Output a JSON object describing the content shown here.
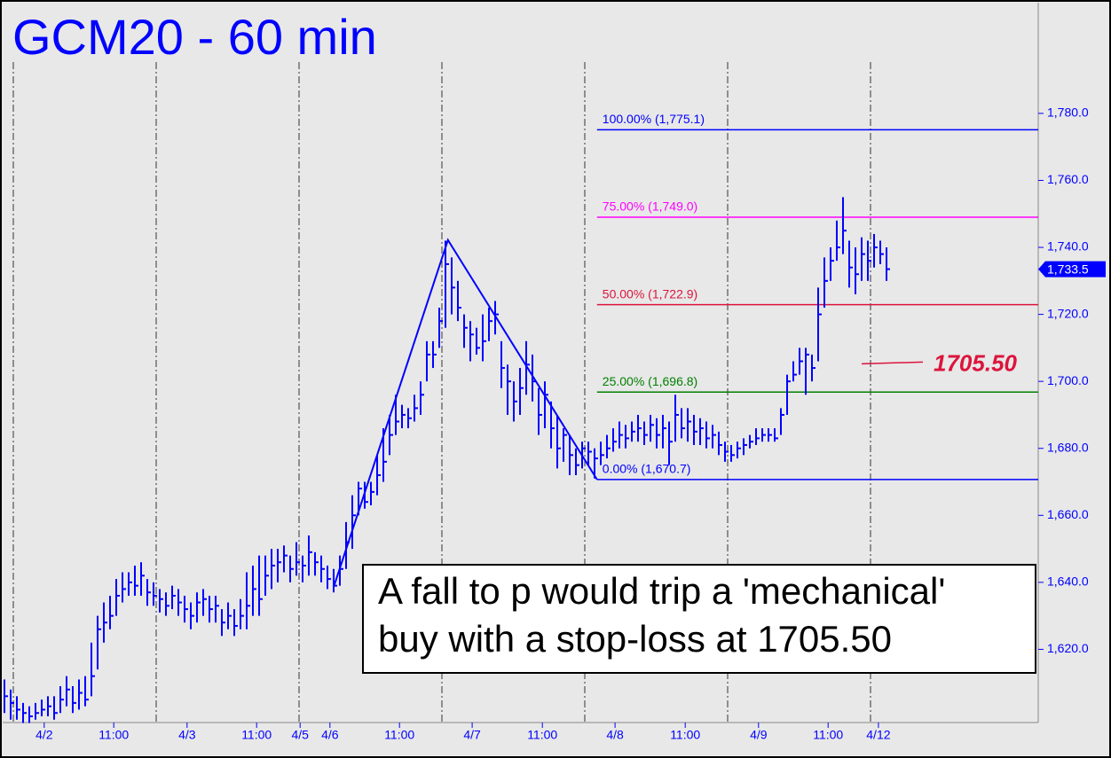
{
  "chart_data": {
    "type": "ohlc",
    "title": "GCM20 - 60 min",
    "color": "#0000ff",
    "ylim": [
      1600,
      1812
    ],
    "yticks": [
      {
        "value": 1620,
        "label": "1,620.0"
      },
      {
        "value": 1640,
        "label": "1,640.0"
      },
      {
        "value": 1660,
        "label": "1,660.0"
      },
      {
        "value": 1680,
        "label": "1,680.0"
      },
      {
        "value": 1700,
        "label": "1,700.0"
      },
      {
        "value": 1720,
        "label": "1,720.0"
      },
      {
        "value": 1740,
        "label": "1,740.0"
      },
      {
        "value": 1760,
        "label": "1,760.0"
      },
      {
        "value": 1780,
        "label": "1,780.0"
      }
    ],
    "xlim": [
      0,
      166
    ],
    "xticks": [
      {
        "value": 6.4,
        "label": "4/2"
      },
      {
        "value": 17.6,
        "label": "11:00"
      },
      {
        "value": 29.4,
        "label": "4/3"
      },
      {
        "value": 40.6,
        "label": "11:00"
      },
      {
        "value": 47.6,
        "label": "4/5"
      },
      {
        "value": 52.4,
        "label": "4/6"
      },
      {
        "value": 63.6,
        "label": "11:00"
      },
      {
        "value": 75.3,
        "label": "4/7"
      },
      {
        "value": 86.6,
        "label": "11:00"
      },
      {
        "value": 98.3,
        "label": "4/8"
      },
      {
        "value": 109.6,
        "label": "11:00"
      },
      {
        "value": 121.4,
        "label": "4/9"
      },
      {
        "value": 132.6,
        "label": "11:00"
      },
      {
        "value": 140.7,
        "label": "4/12"
      }
    ],
    "bars": {
      "high": [
        1611,
        1608,
        1606,
        1604,
        1603,
        1604,
        1605,
        1606,
        1606,
        1609,
        1612,
        1609,
        1611,
        1612,
        1622,
        1630,
        1634,
        1636,
        1641,
        1643,
        1643,
        1645,
        1646,
        1641,
        1640,
        1638,
        1637,
        1639,
        1638,
        1636,
        1634,
        1637,
        1638,
        1636,
        1636,
        1632,
        1634,
        1632,
        1635,
        1643,
        1645,
        1648,
        1648,
        1650,
        1650,
        1651,
        1648,
        1652,
        1648,
        1654,
        1649,
        1648,
        1645,
        1644,
        1648,
        1658,
        1666,
        1670,
        1670,
        1670,
        1678,
        1686,
        1690,
        1696,
        1693,
        1692,
        1696,
        1700,
        1712,
        1712,
        1722,
        1742,
        1737,
        1730,
        1720,
        1718,
        1716,
        1720,
        1722,
        1724,
        1712,
        1705,
        1700,
        1704,
        1712,
        1708,
        1698,
        1700,
        1694,
        1690,
        1686,
        1684,
        1680,
        1682,
        1682,
        1680,
        1682,
        1684,
        1686,
        1688,
        1687,
        1688,
        1690,
        1688,
        1690,
        1689,
        1690,
        1688,
        1696,
        1692,
        1692,
        1690,
        1689,
        1688,
        1687,
        1685,
        1682,
        1681,
        1682,
        1683,
        1684,
        1686,
        1686,
        1686,
        1686,
        1692,
        1702,
        1706,
        1710,
        1710,
        1708,
        1728,
        1737,
        1740,
        1748,
        1755,
        1742,
        1740,
        1743,
        1742,
        1744,
        1742,
        1740
      ],
      "low": [
        1601,
        1599,
        1599,
        1598,
        1598,
        1599,
        1600,
        1600,
        1599,
        1601,
        1603,
        1601,
        1602,
        1603,
        1606,
        1614,
        1622,
        1626,
        1630,
        1634,
        1636,
        1636,
        1636,
        1633,
        1633,
        1631,
        1630,
        1632,
        1630,
        1628,
        1626,
        1628,
        1630,
        1628,
        1628,
        1624,
        1626,
        1624,
        1626,
        1626,
        1630,
        1630,
        1636,
        1638,
        1640,
        1643,
        1640,
        1642,
        1640,
        1642,
        1642,
        1640,
        1638,
        1637,
        1639,
        1644,
        1650,
        1660,
        1662,
        1663,
        1666,
        1670,
        1678,
        1684,
        1686,
        1686,
        1688,
        1690,
        1700,
        1704,
        1710,
        1716,
        1720,
        1718,
        1710,
        1706,
        1708,
        1706,
        1712,
        1714,
        1698,
        1690,
        1688,
        1690,
        1696,
        1694,
        1684,
        1686,
        1680,
        1674,
        1676,
        1672,
        1672,
        1674,
        1675,
        1671,
        1675,
        1677,
        1679,
        1680,
        1680,
        1682,
        1682,
        1681,
        1682,
        1680,
        1680,
        1675,
        1682,
        1683,
        1682,
        1681,
        1681,
        1680,
        1680,
        1678,
        1676,
        1676,
        1677,
        1678,
        1680,
        1681,
        1682,
        1682,
        1682,
        1684,
        1690,
        1700,
        1702,
        1696,
        1700,
        1706,
        1722,
        1730,
        1736,
        1738,
        1728,
        1726,
        1730,
        1730,
        1734,
        1735,
        1730
      ],
      "close": [
        1606,
        1604,
        1602,
        1601,
        1600,
        1601,
        1602,
        1603,
        1601,
        1605,
        1608,
        1604,
        1607,
        1605,
        1612,
        1626,
        1628,
        1630,
        1636,
        1638,
        1640,
        1639,
        1642,
        1637,
        1636,
        1635,
        1633,
        1636,
        1634,
        1632,
        1630,
        1634,
        1635,
        1632,
        1633,
        1628,
        1630,
        1627,
        1630,
        1633,
        1638,
        1635,
        1642,
        1645,
        1646,
        1648,
        1644,
        1646,
        1645,
        1649,
        1646,
        1644,
        1641,
        1639,
        1644,
        1652,
        1660,
        1668,
        1664,
        1667,
        1672,
        1676,
        1684,
        1688,
        1690,
        1689,
        1692,
        1696,
        1708,
        1708,
        1718,
        1735,
        1728,
        1722,
        1716,
        1714,
        1710,
        1712,
        1718,
        1720,
        1704,
        1700,
        1694,
        1698,
        1705,
        1700,
        1690,
        1696,
        1686,
        1680,
        1684,
        1678,
        1675,
        1680,
        1679,
        1677,
        1678,
        1680,
        1682,
        1684,
        1683,
        1685,
        1686,
        1684,
        1687,
        1684,
        1686,
        1682,
        1690,
        1686,
        1688,
        1685,
        1686,
        1683,
        1684,
        1681,
        1679,
        1678,
        1680,
        1681,
        1682,
        1683,
        1684,
        1684,
        1683,
        1690,
        1700,
        1702,
        1706,
        1708,
        1704,
        1720,
        1730,
        1736,
        1740,
        1745,
        1734,
        1732,
        1738,
        1736,
        1740,
        1738,
        1733.5
      ]
    },
    "last_price": {
      "value": 1733.5,
      "label": "1,733.5"
    },
    "zigzag": {
      "x": [
        53,
        71.4,
        95.4
      ],
      "y": [
        1638.6,
        1742.2,
        1670.7
      ]
    },
    "fib_start": 95.4,
    "fib_levels": [
      {
        "label": "100.00% (1,775.1)",
        "value": 1775.1,
        "color": "#0000ff"
      },
      {
        "label": "75.00% (1,749.0)",
        "value": 1749.0,
        "color": "#ff00ff"
      },
      {
        "label": "50.00% (1,722.9)",
        "value": 1722.9,
        "color": "#dc143c"
      },
      {
        "label": "25.00% (1,696.8)",
        "value": 1696.8,
        "color": "#008000"
      },
      {
        "label": "0.00% (1,670.7)",
        "value": 1670.7,
        "color": "#0000ff"
      }
    ],
    "annotation": {
      "text": "1705.50",
      "value": 1705.5,
      "color": "#dc143c"
    },
    "note": [
      "A fall to p would trip a 'mechanical'",
      "buy with a stop-loss at 1705.50"
    ]
  }
}
